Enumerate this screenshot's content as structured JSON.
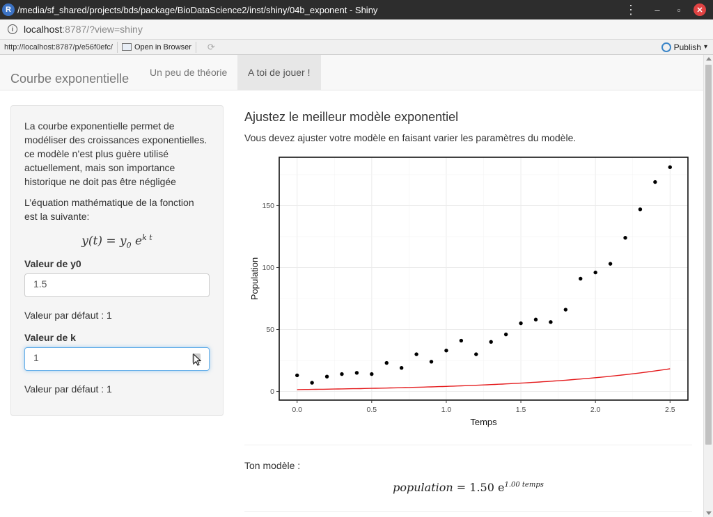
{
  "window": {
    "title": "/media/sf_shared/projects/bds/package/BioDataScience2/inst/shiny/04b_exponent - Shiny",
    "icon_letter": "R",
    "menu_glyph": "⋮",
    "min_glyph": "–",
    "restore_glyph": "▫",
    "close_glyph": "✕"
  },
  "address": {
    "host": "localhost",
    "path": ":8787/?view=shiny"
  },
  "toolbar": {
    "url": "http://localhost:8787/p/e56f0efc/",
    "open_browser": "Open in Browser",
    "refresh_glyph": "⟳",
    "publish": "Publish",
    "publish_caret": "▾"
  },
  "nav": {
    "brand": "Courbe exponentielle",
    "tabs": [
      {
        "label": "Un peu de théorie",
        "active": false
      },
      {
        "label": "A toi de jouer !",
        "active": true
      }
    ]
  },
  "sidebar": {
    "intro": "La courbe exponentielle permet de modéliser des croissances exponentielles. ce modèle n’est plus guère utilisé actuellement, mais son importance historique ne doit pas être négligée",
    "equation_intro": "L’équation mathématique de la fonction est la suivante:",
    "eq": {
      "lhs": "y(t) = y",
      "sub": "0",
      "e": "e",
      "sup": "k t"
    },
    "y0": {
      "label": "Valeur de y0",
      "value": "1.5",
      "hint": "Valeur par défaut : 1"
    },
    "k": {
      "label": "Valeur de k",
      "value": "1",
      "hint": "Valeur par défaut : 1"
    }
  },
  "main": {
    "title": "Ajustez le meilleur modèle exponentiel",
    "subtitle": "Vous devez ajuster votre modèle en faisant varier les paramètres du modèle.",
    "model_label": "Ton modèle :",
    "model_eq": {
      "lhs": "population",
      "eq": " = 1.50 e",
      "sup": "1.00 temps"
    }
  },
  "chart_data": {
    "type": "scatter",
    "xlabel": "Temps",
    "ylabel": "Population",
    "xlim": [
      -0.12,
      2.62
    ],
    "ylim": [
      -7,
      189
    ],
    "xticks": [
      0.0,
      0.5,
      1.0,
      1.5,
      2.0,
      2.5
    ],
    "xtick_labels": [
      "0.0",
      "0.5",
      "1.0",
      "1.5",
      "2.0",
      "2.5"
    ],
    "yticks": [
      0,
      50,
      100,
      150
    ],
    "ytick_labels": [
      "0",
      "50",
      "100",
      "150"
    ],
    "grid": true,
    "points": {
      "x": [
        0.0,
        0.1,
        0.2,
        0.3,
        0.4,
        0.5,
        0.6,
        0.7,
        0.8,
        0.9,
        1.0,
        1.1,
        1.2,
        1.3,
        1.4,
        1.5,
        1.6,
        1.7,
        1.8,
        1.9,
        2.0,
        2.1,
        2.2,
        2.3,
        2.4,
        2.5
      ],
      "y": [
        13,
        7,
        12,
        14,
        15,
        14,
        23,
        19,
        30,
        24,
        33,
        41,
        30,
        40,
        46,
        55,
        58,
        56,
        66,
        91,
        96,
        103,
        124,
        147,
        169,
        181
      ]
    },
    "model": {
      "y0": 1.5,
      "k": 1.0,
      "color": "#e41a1c"
    },
    "point_color": "#000000"
  }
}
